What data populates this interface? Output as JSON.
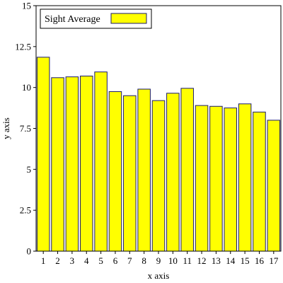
{
  "colors": {
    "bar_fill": "#ffff00",
    "bar_stroke": "#1a1a6e",
    "axis": "#000000",
    "background": "#ffffff"
  },
  "chart_data": {
    "type": "bar",
    "categories": [
      "1",
      "2",
      "3",
      "4",
      "5",
      "6",
      "7",
      "8",
      "9",
      "10",
      "11",
      "12",
      "13",
      "14",
      "15",
      "16",
      "17"
    ],
    "series": [
      {
        "name": "Sight Average",
        "values": [
          11.85,
          10.6,
          10.65,
          10.7,
          10.95,
          9.75,
          9.5,
          9.9,
          9.2,
          9.65,
          9.95,
          8.9,
          8.85,
          8.75,
          9.0,
          8.5,
          8.0
        ]
      }
    ],
    "title": "",
    "xlabel": "x axis",
    "ylabel": "y axis",
    "ylim": [
      0,
      15
    ],
    "yticks": [
      "0",
      "2.5",
      "5",
      "7.5",
      "10",
      "12.5",
      "15"
    ],
    "grid": false,
    "legend": "top-left"
  }
}
